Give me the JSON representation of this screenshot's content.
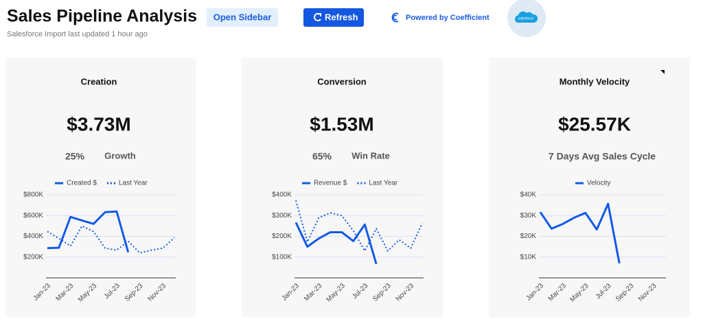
{
  "header": {
    "title": "Sales Pipeline Analysis",
    "subtitle": "Salesforce Import last updated 1 hour ago"
  },
  "buttons": {
    "sidebar": "Open Sidebar",
    "refresh": "Refresh"
  },
  "powered_by": "Powered by Coefficient",
  "logo": "salesforce",
  "cards": [
    {
      "title": "Creation",
      "value": "$3.73M",
      "stat": "25%",
      "stat_label": "Growth"
    },
    {
      "title": "Conversion",
      "value": "$1.53M",
      "stat": "65%",
      "stat_label": "Win Rate"
    },
    {
      "title": "Monthly Velocity",
      "value": "$25.57K",
      "stat": "7 Days Avg Sales Cycle"
    }
  ],
  "chart_data": [
    {
      "type": "line",
      "categories": [
        "Jan-23",
        null,
        "Mar-23",
        null,
        "May-23",
        null,
        "Jul-23",
        null,
        "Sep-23",
        null,
        "Nov-23",
        null
      ],
      "series": [
        {
          "name": "Created $",
          "color": "#1259e6",
          "dash": "solid",
          "values": [
            287000,
            290000,
            587000,
            553000,
            520000,
            633000,
            640000,
            247000,
            null,
            null,
            null,
            null
          ]
        },
        {
          "name": "Last Year",
          "color": "#1259e6",
          "dash": "dotted",
          "values": [
            447000,
            380000,
            307000,
            500000,
            447000,
            287000,
            267000,
            353000,
            240000,
            267000,
            287000,
            387000
          ]
        }
      ],
      "ylim": [
        0,
        800000
      ],
      "yticks": [
        {
          "value": 200000,
          "label": "$200K"
        },
        {
          "value": 400000,
          "label": "$400K"
        },
        {
          "value": 600000,
          "label": "$600K"
        },
        {
          "value": 800000,
          "label": "$800K"
        }
      ],
      "grid": true
    },
    {
      "type": "line",
      "categories": [
        "Jan-23",
        null,
        "Mar-23",
        null,
        "May-23",
        null,
        "Jul-23",
        null,
        "Sep-23",
        null,
        "Nov-23",
        null
      ],
      "series": [
        {
          "name": "Revenue $",
          "color": "#1259e6",
          "dash": "solid",
          "values": [
            267000,
            150000,
            190000,
            220000,
            220000,
            177000,
            257000,
            67000,
            null,
            null,
            null,
            null
          ]
        },
        {
          "name": "Last Year",
          "color": "#1259e6",
          "dash": "dotted",
          "values": [
            373000,
            173000,
            290000,
            313000,
            300000,
            227000,
            130000,
            237000,
            130000,
            183000,
            143000,
            263000
          ]
        }
      ],
      "ylim": [
        0,
        400000
      ],
      "yticks": [
        {
          "value": 100000,
          "label": "$100K"
        },
        {
          "value": 200000,
          "label": "$200K"
        },
        {
          "value": 300000,
          "label": "$300K"
        },
        {
          "value": 400000,
          "label": "$400K"
        }
      ],
      "grid": true
    },
    {
      "type": "line",
      "categories": [
        "Jan-23",
        null,
        "Mar-23",
        null,
        "May-23",
        null,
        "Jul-23",
        null,
        "Sep-23",
        null,
        "Nov-23",
        null
      ],
      "series": [
        {
          "name": "Velocity",
          "color": "#1259e6",
          "dash": "solid",
          "values": [
            31700,
            23700,
            26000,
            29000,
            31300,
            23300,
            35700,
            7000,
            null,
            null,
            null,
            null
          ]
        }
      ],
      "ylim": [
        0,
        40000
      ],
      "yticks": [
        {
          "value": 10000,
          "label": "$10K"
        },
        {
          "value": 20000,
          "label": "$20K"
        },
        {
          "value": 30000,
          "label": "$30K"
        },
        {
          "value": 40000,
          "label": "$40K"
        }
      ],
      "grid": true
    }
  ]
}
